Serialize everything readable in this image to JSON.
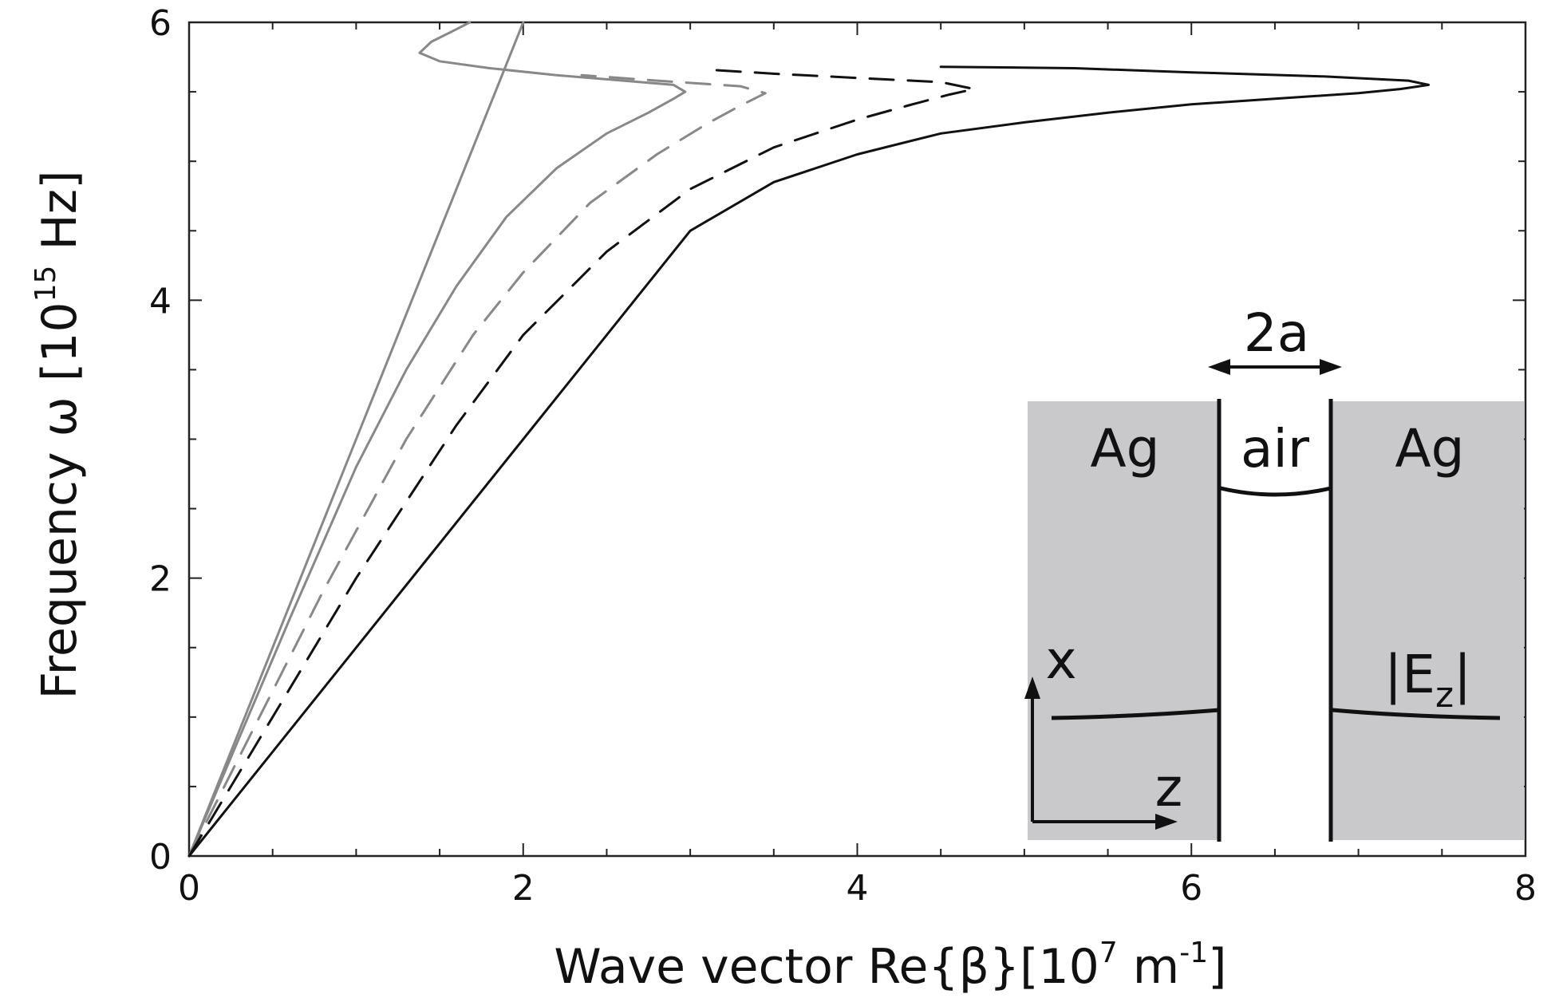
{
  "chart_data": {
    "type": "line",
    "xlabel": {
      "main": "Wave vector Re{β}[10",
      "sup1": "7",
      "mid": " m",
      "sup2": "-1",
      "end": "]"
    },
    "ylabel": {
      "main": "Frequency ω [10",
      "sup": "15",
      "end": " Hz]"
    },
    "xlim": [
      0,
      8
    ],
    "ylim": [
      0,
      6
    ],
    "xticks": [
      0,
      2,
      4,
      6,
      8
    ],
    "yticks": [
      0,
      2,
      4,
      6
    ],
    "x_minor_step": 0.5,
    "y_minor_step": 0.5,
    "grid": false,
    "series": [
      {
        "color": "#888888",
        "dash": "solid",
        "x": [
          0,
          0.5,
          1.0,
          1.5,
          2.0
        ],
        "y": [
          0,
          1.5,
          3.0,
          4.5,
          6.0
        ]
      },
      {
        "color": "#888888",
        "dash": "solid",
        "x": [
          0,
          0.6,
          1.0,
          1.3,
          1.6,
          1.9,
          2.2,
          2.5,
          2.75,
          2.9,
          2.97,
          2.9,
          2.6,
          2.2,
          1.8,
          1.5,
          1.38,
          1.45,
          1.6,
          1.68
        ],
        "y": [
          0,
          1.7,
          2.8,
          3.5,
          4.1,
          4.6,
          4.95,
          5.2,
          5.35,
          5.45,
          5.5,
          5.55,
          5.58,
          5.62,
          5.67,
          5.72,
          5.78,
          5.86,
          5.95,
          6.0
        ]
      },
      {
        "color": "#888888",
        "dash": "dashed",
        "x": [
          0,
          0.8,
          1.3,
          1.7,
          2.0,
          2.4,
          2.8,
          3.1,
          3.3,
          3.45,
          3.3,
          2.8,
          2.35
        ],
        "y": [
          0,
          1.9,
          3.0,
          3.75,
          4.2,
          4.7,
          5.05,
          5.27,
          5.4,
          5.49,
          5.54,
          5.58,
          5.62
        ]
      },
      {
        "color": "#111111",
        "dash": "dashed",
        "x": [
          0,
          1.0,
          1.6,
          2.0,
          2.5,
          3.0,
          3.5,
          4.0,
          4.3,
          4.55,
          4.7,
          4.5,
          4.0,
          3.5,
          3.1
        ],
        "y": [
          0,
          2.0,
          3.1,
          3.75,
          4.35,
          4.8,
          5.1,
          5.3,
          5.4,
          5.48,
          5.52,
          5.57,
          5.6,
          5.63,
          5.66
        ]
      },
      {
        "color": "#111111",
        "dash": "solid",
        "x": [
          0,
          1.0,
          2.0,
          3.0,
          3.5,
          4.0,
          4.5,
          5.0,
          5.5,
          6.0,
          6.5,
          7.0,
          7.25,
          7.42,
          7.3,
          6.8,
          6.0,
          5.3,
          4.5
        ],
        "y": [
          0,
          1.5,
          3.0,
          4.5,
          4.85,
          5.05,
          5.2,
          5.28,
          5.35,
          5.41,
          5.45,
          5.49,
          5.52,
          5.55,
          5.58,
          5.61,
          5.64,
          5.67,
          5.68
        ]
      }
    ],
    "inset": {
      "left_label": "Ag",
      "center_label": "air",
      "right_label": "Ag",
      "gap_label": "2a",
      "x_axis_label": "x",
      "z_axis_label": "z",
      "field_label_main": "|E",
      "field_label_sub": "z",
      "field_label_end": "|",
      "metal_color": "#c9c8cb"
    }
  }
}
